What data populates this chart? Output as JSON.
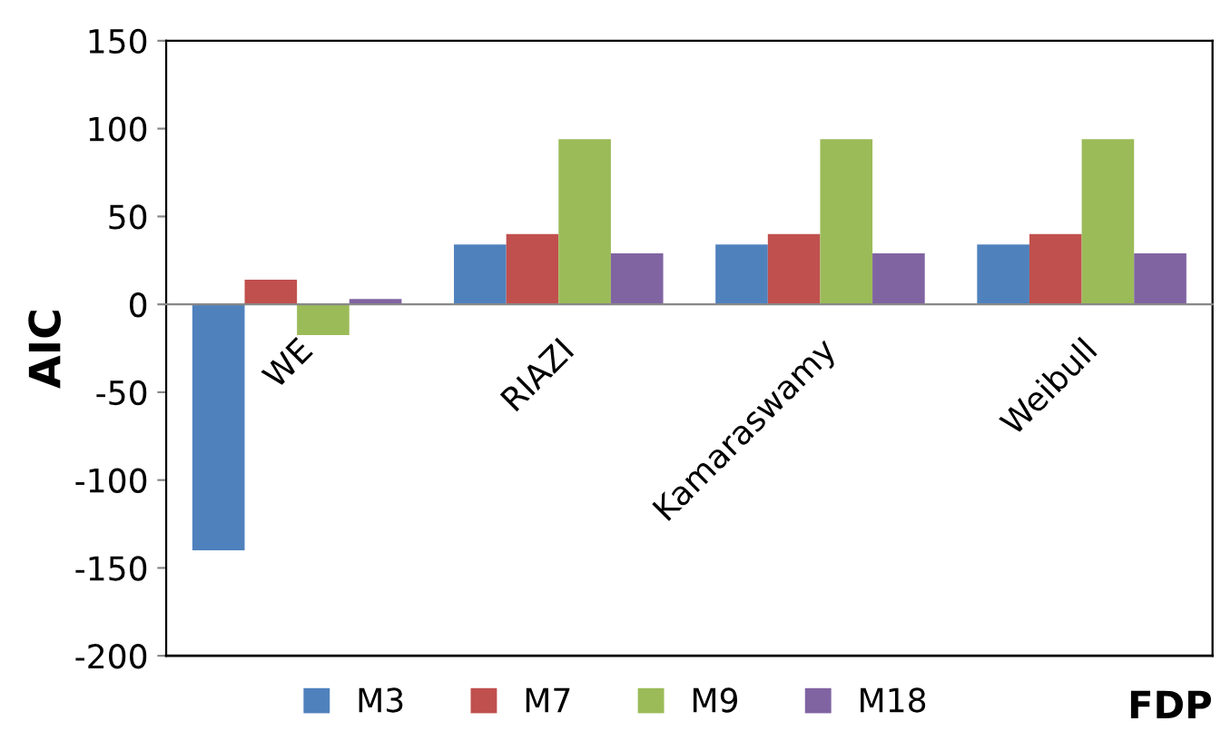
{
  "chart_data": {
    "type": "bar",
    "xlabel": "FDP",
    "ylabel": "AIC",
    "categories": [
      "WE",
      "RIAZI",
      "Kamaraswamy",
      "Weibull"
    ],
    "series": [
      {
        "name": "M3",
        "color": "#4f81bd",
        "values": [
          -140,
          34,
          34,
          34
        ]
      },
      {
        "name": "M7",
        "color": "#c0504d",
        "values": [
          14,
          40,
          40,
          40
        ]
      },
      {
        "name": "M9",
        "color": "#9bbb59",
        "values": [
          -17.5,
          94,
          94,
          94
        ]
      },
      {
        "name": "M18",
        "color": "#8064a2",
        "values": [
          3,
          29,
          29,
          29
        ]
      }
    ],
    "ylim": [
      -200,
      150
    ],
    "yticks": [
      -200,
      -150,
      -100,
      -50,
      0,
      50,
      100,
      150
    ],
    "grid": false,
    "legend": "bottom"
  }
}
